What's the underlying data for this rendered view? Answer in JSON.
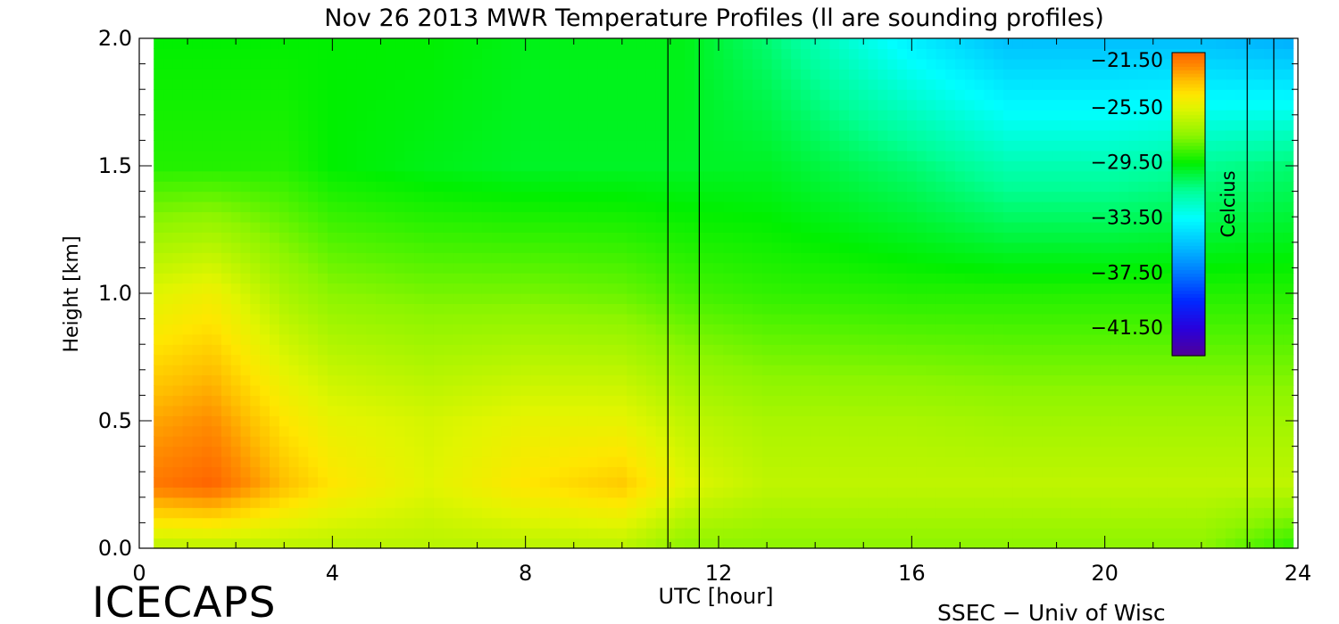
{
  "chart_data": {
    "type": "heatmap",
    "title": "Nov 26 2013 MWR Temperature Profiles (ll are sounding profiles)",
    "xlabel": "UTC [hour]",
    "ylabel": "Height [km]",
    "xlim": [
      0,
      24
    ],
    "ylim": [
      0.0,
      2.0
    ],
    "x_ticks": [
      0,
      4,
      8,
      12,
      16,
      20,
      24
    ],
    "x_tick_labels": [
      "0",
      "4",
      "8",
      "12",
      "16",
      "20",
      "24"
    ],
    "y_ticks": [
      0.0,
      0.5,
      1.0,
      1.5,
      2.0
    ],
    "y_tick_labels": [
      "0.0",
      "0.5",
      "1.0",
      "1.5",
      "2.0"
    ],
    "data_x_range": [
      0.3,
      23.9
    ],
    "sounding_profile_hours": [
      10.95,
      11.6,
      22.95,
      23.5
    ],
    "colorbar": {
      "label": "Celcius",
      "range": [
        -43.5,
        -21.5
      ],
      "ticks": [
        -21.5,
        -25.5,
        -29.5,
        -33.5,
        -37.5,
        -41.5
      ],
      "tick_labels": [
        "−21.50",
        "−25.50",
        "−29.50",
        "−33.50",
        "−37.50",
        "−41.50"
      ],
      "placement": "top-right inside plot"
    },
    "temperature_field_estimate": {
      "units": "Celsius",
      "x_hours": [
        0.3,
        1.5,
        3,
        4,
        6,
        8,
        10,
        11.3,
        13,
        16,
        18,
        20,
        22,
        23.9
      ],
      "heights_km": [
        0.0,
        0.25,
        0.5,
        1.0,
        1.5,
        2.0
      ],
      "values": [
        [
          -26.5,
          -26.5,
          -26.5,
          -26.5,
          -26.5,
          -26.5,
          -26.5,
          -27.5,
          -27.5,
          -27.5,
          -27.5,
          -27.5,
          -27.5,
          -29.0
        ],
        [
          -22.0,
          -21.5,
          -23.5,
          -24.5,
          -25.5,
          -24.5,
          -23.8,
          -25.5,
          -26.3,
          -26.3,
          -26.3,
          -26.3,
          -26.3,
          -26.3
        ],
        [
          -23.0,
          -22.5,
          -24.5,
          -25.3,
          -25.8,
          -25.3,
          -25.3,
          -26.3,
          -26.8,
          -26.8,
          -27.0,
          -27.0,
          -27.0,
          -27.0
        ],
        [
          -25.5,
          -25.0,
          -26.8,
          -27.5,
          -27.8,
          -27.8,
          -28.0,
          -28.5,
          -28.8,
          -29.0,
          -29.0,
          -29.0,
          -29.0,
          -29.0
        ],
        [
          -29.0,
          -29.0,
          -29.0,
          -29.5,
          -29.8,
          -30.0,
          -30.0,
          -30.0,
          -30.0,
          -31.0,
          -32.0,
          -32.0,
          -31.5,
          -31.0
        ],
        [
          -29.5,
          -29.5,
          -29.5,
          -29.5,
          -29.5,
          -29.8,
          -29.8,
          -29.8,
          -31.0,
          -34.0,
          -35.5,
          -35.5,
          -35.5,
          -36.0
        ]
      ]
    }
  },
  "footer": {
    "left_logo": "ICECAPS",
    "right_credit": "SSEC − Univ of Wisc"
  },
  "colors": {
    "background": "#ffffff",
    "axis": "#000000",
    "sounding_lines": "#000000"
  }
}
